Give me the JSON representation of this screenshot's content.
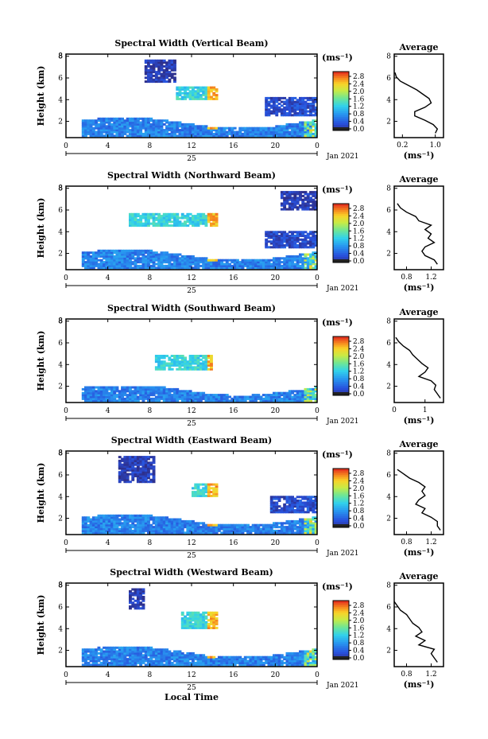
{
  "figure": {
    "x_axis_label": "Local Time",
    "date_day": "25",
    "date_month_year": "Jan 2021",
    "height_label": "Height (km)",
    "colorbar_unit": "(ms⁻¹)",
    "avg_title": "Average",
    "avg_unit": "(ms⁻¹)"
  },
  "chart_data": [
    {
      "type": "heatmap",
      "title": "Spectral Width (Vertical Beam)",
      "x_ticks": [
        "0",
        "4",
        "8",
        "12",
        "16",
        "20",
        "0"
      ],
      "xlim": [
        0,
        24
      ],
      "y_ticks": [
        "2",
        "4",
        "6",
        "8"
      ],
      "ylim": [
        0.5,
        8.2
      ],
      "colorbar_ticks": [
        "0.0",
        "0.4",
        "0.8",
        "1.2",
        "1.6",
        "2.0",
        "2.4",
        "2.8"
      ],
      "colorbar_range": [
        0,
        3.0
      ],
      "features": [
        {
          "desc": "boundary layer band",
          "x": [
            1.5,
            24
          ],
          "y": [
            0.6,
            2.2
          ],
          "value": 0.7
        },
        {
          "desc": "upper cloud patch",
          "x": [
            7.5,
            10.5
          ],
          "y": [
            5.6,
            7.6
          ],
          "value": 0.15
        },
        {
          "desc": "mid-level echo",
          "x": [
            10.5,
            14.5
          ],
          "y": [
            4.0,
            5.2
          ],
          "value": 1.3
        },
        {
          "desc": "late mid patch",
          "x": [
            19.0,
            24
          ],
          "y": [
            2.5,
            4.2
          ],
          "value": 0.3
        }
      ],
      "average_profile": {
        "xlabel": "(ms⁻¹)",
        "x_ticks": [
          "0.2",
          "1.0"
        ],
        "xlim": [
          0,
          1.2
        ],
        "y_ticks": [
          "2",
          "4",
          "6",
          "8"
        ],
        "ylim": [
          0.5,
          8.2
        ],
        "height": [
          0.9,
          1.3,
          1.7,
          2.1,
          2.5,
          2.9,
          3.3,
          3.7,
          4.1,
          4.5,
          4.9,
          5.3,
          5.7,
          6.1,
          6.5
        ],
        "value": [
          1.0,
          1.05,
          0.95,
          0.75,
          0.5,
          0.5,
          0.75,
          0.9,
          0.85,
          0.7,
          0.55,
          0.35,
          0.15,
          0.05,
          0.02
        ]
      }
    },
    {
      "type": "heatmap",
      "title": "Spectral Width (Northward Beam)",
      "x_ticks": [
        "0",
        "4",
        "8",
        "12",
        "16",
        "20",
        "0"
      ],
      "xlim": [
        0,
        24
      ],
      "y_ticks": [
        "2",
        "4",
        "6",
        "8"
      ],
      "ylim": [
        0.5,
        8.2
      ],
      "colorbar_ticks": [
        "0.0",
        "0.4",
        "0.8",
        "1.2",
        "1.6",
        "2.0",
        "2.4",
        "2.8"
      ],
      "colorbar_range": [
        0,
        3.0
      ],
      "features": [
        {
          "desc": "boundary layer band",
          "x": [
            1.5,
            24
          ],
          "y": [
            0.6,
            2.2
          ],
          "value": 0.7
        },
        {
          "desc": "upper patch",
          "x": [
            20.5,
            24
          ],
          "y": [
            6.0,
            7.6
          ],
          "value": 0.15
        },
        {
          "desc": "mid-level echo",
          "x": [
            6.0,
            14.5
          ],
          "y": [
            4.5,
            5.6
          ],
          "value": 1.3
        },
        {
          "desc": "late mid patch",
          "x": [
            19.0,
            24
          ],
          "y": [
            2.5,
            4.0
          ],
          "value": 0.3
        }
      ],
      "average_profile": {
        "xlabel": "(ms⁻¹)",
        "x_ticks": [
          "0.8",
          "1.2"
        ],
        "xlim": [
          0.6,
          1.4
        ],
        "y_ticks": [
          "2",
          "4",
          "6",
          "8"
        ],
        "ylim": [
          0.5,
          8.2
        ],
        "height": [
          1.0,
          1.4,
          1.8,
          2.2,
          2.6,
          3.0,
          3.4,
          3.8,
          4.2,
          4.6,
          5.0,
          5.4,
          5.8,
          6.2,
          6.6
        ],
        "value": [
          1.3,
          1.25,
          1.1,
          1.05,
          1.1,
          1.25,
          1.15,
          1.2,
          1.1,
          1.2,
          1.0,
          0.95,
          0.8,
          0.7,
          0.65
        ]
      }
    },
    {
      "type": "heatmap",
      "title": "Spectral Width (Southward Beam)",
      "x_ticks": [
        "0",
        "4",
        "8",
        "12",
        "16",
        "20",
        "0"
      ],
      "xlim": [
        0,
        24
      ],
      "y_ticks": [
        "2",
        "4",
        "6",
        "8"
      ],
      "ylim": [
        0.5,
        8.2
      ],
      "colorbar_ticks": [
        "0.0",
        "0.4",
        "0.8",
        "1.2",
        "1.6",
        "2.0",
        "2.4",
        "2.8"
      ],
      "colorbar_range": [
        0,
        3.0
      ],
      "features": [
        {
          "desc": "boundary layer band",
          "x": [
            1.5,
            24
          ],
          "y": [
            0.6,
            2.0
          ],
          "value": 0.7
        },
        {
          "desc": "mid-level echo",
          "x": [
            8.5,
            14.0
          ],
          "y": [
            3.5,
            4.8
          ],
          "value": 1.3
        }
      ],
      "average_profile": {
        "xlabel": "(ms⁻¹)",
        "x_ticks": [
          "0",
          "1"
        ],
        "xlim": [
          0,
          1.6
        ],
        "y_ticks": [
          "2",
          "4",
          "6",
          "8"
        ],
        "ylim": [
          0.5,
          8.2
        ],
        "height": [
          0.9,
          1.3,
          1.7,
          2.1,
          2.5,
          2.9,
          3.3,
          3.7,
          4.1,
          4.5,
          4.9,
          5.3,
          5.7,
          6.1,
          6.5
        ],
        "value": [
          1.5,
          1.4,
          1.3,
          1.35,
          1.2,
          0.8,
          1.0,
          1.1,
          0.9,
          0.75,
          0.6,
          0.5,
          0.3,
          0.15,
          0.05
        ]
      }
    },
    {
      "type": "heatmap",
      "title": "Spectral Width (Eastward Beam)",
      "x_ticks": [
        "0",
        "4",
        "8",
        "12",
        "16",
        "20",
        "0"
      ],
      "xlim": [
        0,
        24
      ],
      "y_ticks": [
        "2",
        "4",
        "6",
        "8"
      ],
      "ylim": [
        0.5,
        8.2
      ],
      "colorbar_ticks": [
        "0.0",
        "0.4",
        "0.8",
        "1.2",
        "1.6",
        "2.0",
        "2.4",
        "2.8"
      ],
      "colorbar_range": [
        0,
        3.0
      ],
      "features": [
        {
          "desc": "boundary layer band",
          "x": [
            1.5,
            24
          ],
          "y": [
            0.6,
            2.2
          ],
          "value": 0.7
        },
        {
          "desc": "upper cloud patch",
          "x": [
            5.0,
            8.5
          ],
          "y": [
            5.3,
            7.6
          ],
          "value": 0.15
        },
        {
          "desc": "mid-level echo",
          "x": [
            12.0,
            14.5
          ],
          "y": [
            4.0,
            5.2
          ],
          "value": 1.3
        },
        {
          "desc": "late mid patch",
          "x": [
            19.5,
            24
          ],
          "y": [
            2.5,
            4.0
          ],
          "value": 0.3
        }
      ],
      "average_profile": {
        "xlabel": "(ms⁻¹)",
        "x_ticks": [
          "0.8",
          "1.2"
        ],
        "xlim": [
          0.6,
          1.4
        ],
        "y_ticks": [
          "2",
          "4",
          "6",
          "8"
        ],
        "ylim": [
          0.5,
          8.2
        ],
        "height": [
          0.9,
          1.3,
          1.7,
          2.1,
          2.5,
          2.9,
          3.3,
          3.7,
          4.1,
          4.5,
          4.9,
          5.3,
          5.7,
          6.1,
          6.5
        ],
        "value": [
          1.35,
          1.3,
          1.3,
          1.2,
          1.05,
          1.1,
          0.95,
          1.0,
          1.1,
          1.05,
          1.1,
          1.0,
          0.85,
          0.75,
          0.65
        ]
      }
    },
    {
      "type": "heatmap",
      "title": "Spectral Width (Westward Beam)",
      "x_ticks": [
        "0",
        "4",
        "8",
        "12",
        "16",
        "20",
        "0"
      ],
      "xlim": [
        0,
        24
      ],
      "y_ticks": [
        "2",
        "4",
        "6",
        "8"
      ],
      "ylim": [
        0.5,
        8.2
      ],
      "colorbar_ticks": [
        "0.0",
        "0.4",
        "0.8",
        "1.2",
        "1.6",
        "2.0",
        "2.4",
        "2.8"
      ],
      "colorbar_range": [
        0,
        3.0
      ],
      "features": [
        {
          "desc": "boundary layer band",
          "x": [
            1.5,
            24
          ],
          "y": [
            0.6,
            2.2
          ],
          "value": 0.7
        },
        {
          "desc": "upper patch",
          "x": [
            6.0,
            7.5
          ],
          "y": [
            5.8,
            7.6
          ],
          "value": 0.15
        },
        {
          "desc": "mid-level echo",
          "x": [
            11.0,
            14.5
          ],
          "y": [
            4.0,
            5.4
          ],
          "value": 1.3
        }
      ],
      "average_profile": {
        "xlabel": "(ms⁻¹)",
        "x_ticks": [
          "0.8",
          "1.2"
        ],
        "xlim": [
          0.6,
          1.4
        ],
        "y_ticks": [
          "2",
          "4",
          "6",
          "8"
        ],
        "ylim": [
          0.5,
          8.2
        ],
        "height": [
          0.9,
          1.3,
          1.7,
          2.1,
          2.5,
          2.9,
          3.3,
          3.7,
          4.1,
          4.5,
          4.9,
          5.3,
          5.7,
          6.1,
          6.5
        ],
        "value": [
          1.3,
          1.25,
          1.2,
          1.25,
          1.0,
          1.1,
          0.95,
          1.05,
          1.0,
          0.9,
          0.85,
          0.8,
          0.7,
          0.65,
          0.6
        ]
      }
    }
  ]
}
